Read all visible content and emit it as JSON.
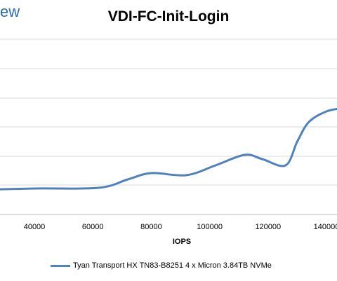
{
  "logo_fragment": "ew",
  "chart_data": {
    "type": "line",
    "title": "VDI-FC-Init-Login",
    "xlabel": "IOPS",
    "ylabel": "",
    "xlim": [
      20000,
      146000
    ],
    "xticks": [
      40000,
      60000,
      80000,
      100000,
      120000,
      140000
    ],
    "grid": "horizontal",
    "legend_position": "bottom",
    "series": [
      {
        "name": "Tyan Transport HX TN83-B8251 4 x Micron 3.84TB NVMe",
        "color": "#4f81bd",
        "points": [
          {
            "x": 20000,
            "y": 271
          },
          {
            "x": 40000,
            "y": 269
          },
          {
            "x": 62000,
            "y": 268
          },
          {
            "x": 72000,
            "y": 256
          },
          {
            "x": 80000,
            "y": 247
          },
          {
            "x": 92000,
            "y": 250
          },
          {
            "x": 102000,
            "y": 236
          },
          {
            "x": 112000,
            "y": 221
          },
          {
            "x": 118000,
            "y": 227
          },
          {
            "x": 126000,
            "y": 236
          },
          {
            "x": 130000,
            "y": 202
          },
          {
            "x": 134000,
            "y": 174
          },
          {
            "x": 140000,
            "y": 159
          },
          {
            "x": 146000,
            "y": 154
          }
        ]
      }
    ]
  }
}
